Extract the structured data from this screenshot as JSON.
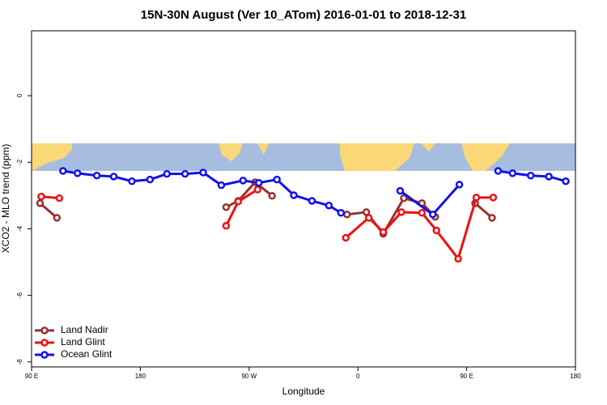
{
  "chart_data": {
    "type": "line",
    "title": "15N-30N August (Ver 10_ATom)   2016-01-01 to 2018-12-31",
    "x_label": "Longitude",
    "y_label": "XCO2 - MLO trend (ppm)",
    "xlim": [
      90,
      540
    ],
    "ylim": [
      -8.15,
      1.95
    ],
    "xticks": [
      {
        "value": 90,
        "label": "90 E"
      },
      180,
      {
        "value": 270,
        "label": "90 W"
      },
      {
        "value": 360,
        "label": "0"
      },
      {
        "value": 450,
        "label": "90 E"
      },
      180
    ],
    "yticks": [
      0,
      -2,
      -4,
      -6,
      -8
    ],
    "legend": "bottom-left",
    "series": [
      {
        "name": "Land Nadir",
        "color": "#99302f",
        "x": [
          97,
          111,
          null,
          251,
          261,
          275,
          289,
          null,
          351,
          367,
          381,
          398,
          413,
          424,
          null,
          457,
          471
        ],
        "values": [
          -3.23,
          -3.67,
          null,
          -3.35,
          -3.16,
          -2.6,
          -3.01,
          null,
          -3.57,
          -3.5,
          -4.15,
          -3.08,
          -3.23,
          -3.64,
          null,
          -3.23,
          -3.67
        ]
      },
      {
        "name": "Land Glint",
        "color": "#ee1111",
        "x": [
          98,
          113,
          null,
          251,
          261,
          277,
          null,
          350,
          369,
          381,
          396,
          413,
          425,
          443,
          458,
          472
        ],
        "values": [
          -3.03,
          -3.08,
          null,
          -3.91,
          -3.18,
          -2.82,
          null,
          -4.27,
          -3.67,
          -4.1,
          -3.5,
          -3.52,
          -4.05,
          -4.9,
          -3.06,
          -3.06
        ]
      },
      {
        "name": "Ocean Glint",
        "color": "#1111ee",
        "x": [
          116,
          128,
          144,
          158,
          173,
          188,
          202,
          217,
          232,
          247,
          265,
          278,
          293,
          307,
          322,
          336,
          346,
          null,
          395,
          422,
          444,
          null,
          476,
          488,
          503,
          518,
          532
        ],
        "values": [
          -2.26,
          -2.33,
          -2.4,
          -2.43,
          -2.57,
          -2.52,
          -2.35,
          -2.35,
          -2.31,
          -2.69,
          -2.55,
          -2.62,
          -2.52,
          -2.99,
          -3.16,
          -3.3,
          -3.52,
          null,
          -2.86,
          -3.57,
          -2.67,
          null,
          -2.26,
          -2.33,
          -2.4,
          -2.43,
          -2.57
        ]
      }
    ]
  }
}
